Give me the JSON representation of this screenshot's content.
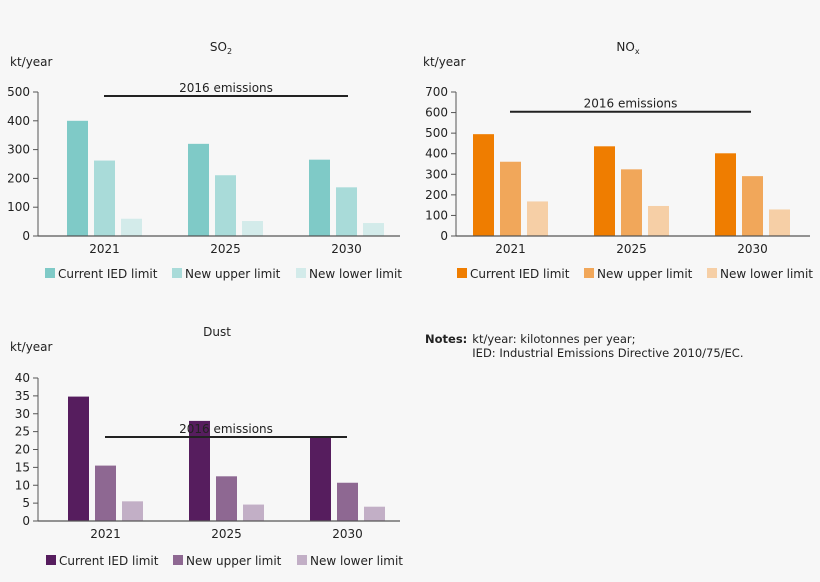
{
  "colors": {
    "background": "#f7f7f7",
    "reference_line": "#222222"
  },
  "notes": {
    "label": "Notes:",
    "lines": [
      "kt/year: kilotonnes per year;",
      "IED: Industrial Emissions Directive 2010/75/EC."
    ]
  },
  "chart_data": [
    {
      "type": "bar",
      "title": "SO",
      "title_sub": "2",
      "ylabel": "kt/year",
      "categories": [
        "2021",
        "2025",
        "2030"
      ],
      "ylim": [
        0,
        500
      ],
      "yticks": [
        0,
        100,
        200,
        300,
        400,
        500
      ],
      "grid": false,
      "legend_position": "bottom",
      "series": [
        {
          "name": "Current IED limit",
          "color": "#7fcac7",
          "values": [
            400,
            320,
            265
          ]
        },
        {
          "name": "New upper limit",
          "color": "#a9dbd9",
          "values": [
            262,
            211,
            169
          ]
        },
        {
          "name": "New lower limit",
          "color": "#d3ebea",
          "values": [
            60,
            52,
            45
          ]
        }
      ],
      "reference_line": {
        "label": "2016 emissions",
        "value": 486
      }
    },
    {
      "type": "bar",
      "title": "NO",
      "title_sub": "x",
      "ylabel": "kt/year",
      "categories": [
        "2021",
        "2025",
        "2030"
      ],
      "ylim": [
        0,
        700
      ],
      "yticks": [
        0,
        100,
        200,
        300,
        400,
        500,
        600,
        700
      ],
      "grid": false,
      "legend_position": "bottom",
      "series": [
        {
          "name": "Current IED limit",
          "color": "#ef7d00",
          "values": [
            495,
            436,
            402
          ]
        },
        {
          "name": "New upper limit",
          "color": "#f1a75a",
          "values": [
            361,
            324,
            291
          ]
        },
        {
          "name": "New lower limit",
          "color": "#f6cfa6",
          "values": [
            168,
            146,
            129
          ]
        }
      ],
      "reference_line": {
        "label": "2016 emissions",
        "value": 604
      }
    },
    {
      "type": "bar",
      "title": "Dust",
      "title_sub": "",
      "ylabel": "kt/year",
      "categories": [
        "2021",
        "2025",
        "2030"
      ],
      "ylim": [
        0,
        40
      ],
      "yticks": [
        0,
        5,
        10,
        15,
        20,
        25,
        30,
        35,
        40
      ],
      "grid": false,
      "legend_position": "bottom",
      "series": [
        {
          "name": "Current IED limit",
          "color": "#561d5e",
          "values": [
            34.8,
            28,
            23.5
          ]
        },
        {
          "name": "New upper limit",
          "color": "#8e6892",
          "values": [
            15.5,
            12.5,
            10.7
          ]
        },
        {
          "name": "New lower limit",
          "color": "#c2afc6",
          "values": [
            5.5,
            4.6,
            4
          ]
        }
      ],
      "reference_line": {
        "label": "2016 emissions",
        "value": 23.5
      }
    }
  ]
}
